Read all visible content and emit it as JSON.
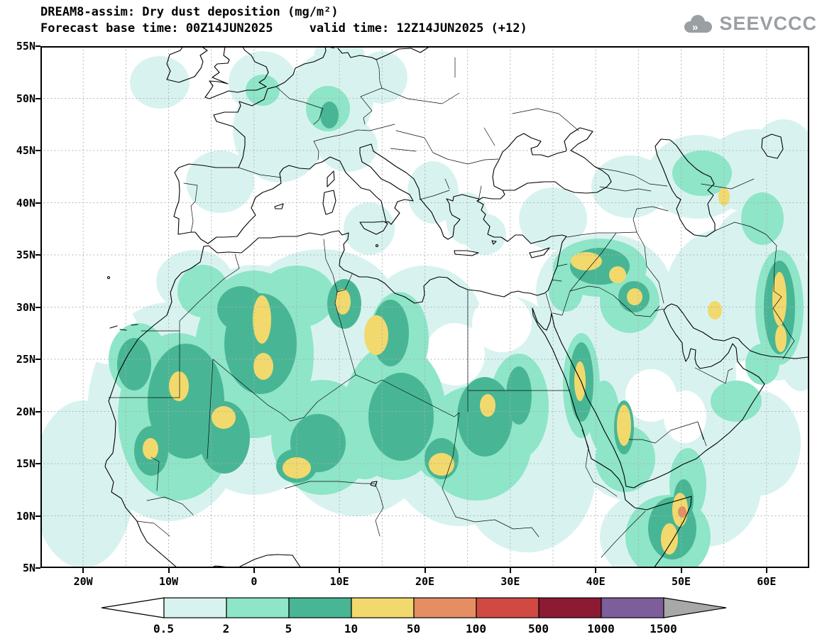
{
  "header": {
    "title_line1": "DREAM8-assim: Dry dust deposition (mg/m²)",
    "title_line2": "Forecast base time: 00Z14JUN2025     valid time: 12Z14JUN2025 (+12)",
    "logo_text": "SEEVCCC"
  },
  "chart_data": {
    "type": "heatmap",
    "title": "DREAM8-assim: Dry dust deposition (mg/m²)",
    "model": "DREAM8-assim",
    "variable": "Dry dust deposition",
    "units": "mg/m²",
    "forecast_base_time": "00Z14JUN2025",
    "valid_time": "12Z14JUN2025 (+12)",
    "forecast_hour": "+12",
    "projection": "latlon",
    "lon_range": [
      -25,
      65
    ],
    "lat_range": [
      5,
      55
    ],
    "grid_interval_deg": 5,
    "grid": "dotted",
    "legend_position": "bottom",
    "lon_ticks": [
      {
        "label": "20W",
        "lon": -20
      },
      {
        "label": "10W",
        "lon": -10
      },
      {
        "label": "0",
        "lon": 0
      },
      {
        "label": "10E",
        "lon": 10
      },
      {
        "label": "20E",
        "lon": 20
      },
      {
        "label": "30E",
        "lon": 30
      },
      {
        "label": "40E",
        "lon": 40
      },
      {
        "label": "50E",
        "lon": 50
      },
      {
        "label": "60E",
        "lon": 60
      }
    ],
    "lat_ticks": [
      {
        "label": "55N",
        "lat": 55
      },
      {
        "label": "50N",
        "lat": 50
      },
      {
        "label": "45N",
        "lat": 45
      },
      {
        "label": "40N",
        "lat": 40
      },
      {
        "label": "35N",
        "lat": 35
      },
      {
        "label": "30N",
        "lat": 30
      },
      {
        "label": "25N",
        "lat": 25
      },
      {
        "label": "20N",
        "lat": 20
      },
      {
        "label": "15N",
        "lat": 15
      },
      {
        "label": "10N",
        "lat": 10
      },
      {
        "label": "5N",
        "lat": 5
      }
    ],
    "levels_mg_m2": [
      0.5,
      2,
      5,
      10,
      50,
      100,
      500,
      1000,
      1500
    ],
    "colorbar_labels": [
      "0.5",
      "2",
      "5",
      "10",
      "50",
      "100",
      "500",
      "1000",
      "1500"
    ],
    "band_colors": [
      "#ffffff",
      "#d8f3ef",
      "#8ee5c8",
      "#48b694",
      "#f2d96d",
      "#e58e63",
      "#d04a42",
      "#8c1a33",
      "#7d5e9a",
      "#a8a8a8"
    ],
    "band_ranges": [
      "<0.5",
      "0.5-2",
      "2-5",
      "5-10",
      "10-50",
      "50-100",
      "100-500",
      "500-1000",
      "1000-1500",
      ">1500"
    ],
    "hotspots": [
      {
        "region": "N Mauritania",
        "lon": -8.8,
        "lat": 22.4,
        "band": "10-50"
      },
      {
        "region": "Mali",
        "lon": -3.6,
        "lat": 19.4,
        "band": "10-50"
      },
      {
        "region": "Senegal / S Mauritania",
        "lon": -12.1,
        "lat": 16.4,
        "band": "10-50"
      },
      {
        "region": "C Algeria",
        "lon": 0.9,
        "lat": 28.8,
        "band": "10-50"
      },
      {
        "region": "S Algeria",
        "lon": 1.1,
        "lat": 24.3,
        "band": "10-50"
      },
      {
        "region": "S Niger",
        "lon": 5.0,
        "lat": 14.6,
        "band": "10-50"
      },
      {
        "region": "NW Libya",
        "lon": 10.4,
        "lat": 30.5,
        "band": "10-50"
      },
      {
        "region": "C Libya",
        "lon": 14.3,
        "lat": 27.3,
        "band": "10-50"
      },
      {
        "region": "Chad / Sudan border",
        "lon": 22.0,
        "lat": 14.9,
        "band": "10-50"
      },
      {
        "region": "N Sudan",
        "lon": 27.4,
        "lat": 20.6,
        "band": "10-50"
      },
      {
        "region": "Sudan Red Sea coast",
        "lon": 38.2,
        "lat": 22.9,
        "band": "10-50"
      },
      {
        "region": "SW Saudi Arabia",
        "lon": 43.3,
        "lat": 18.7,
        "band": "10-50"
      },
      {
        "region": "NE Syria",
        "lon": 38.9,
        "lat": 34.4,
        "band": "10-50"
      },
      {
        "region": "W Iraq",
        "lon": 42.6,
        "lat": 33.1,
        "band": "10-50"
      },
      {
        "region": "S Iraq",
        "lon": 44.6,
        "lat": 31.0,
        "band": "10-50"
      },
      {
        "region": "NE Somalia",
        "lon": 49.9,
        "lat": 10.6,
        "band": "10-50"
      },
      {
        "region": "NE Somalia maximum",
        "lon": 50.1,
        "lat": 10.4,
        "band": "50-100"
      },
      {
        "region": "S Iran coast",
        "lon": 54.0,
        "lat": 29.7,
        "band": "10-50"
      },
      {
        "region": "E of Caspian Sea",
        "lon": 55.0,
        "lat": 40.6,
        "band": "10-50"
      },
      {
        "region": "Iran / Afghanistan ~61E",
        "lon": 61.0,
        "lat": 30.8,
        "band": "10-50"
      }
    ]
  }
}
